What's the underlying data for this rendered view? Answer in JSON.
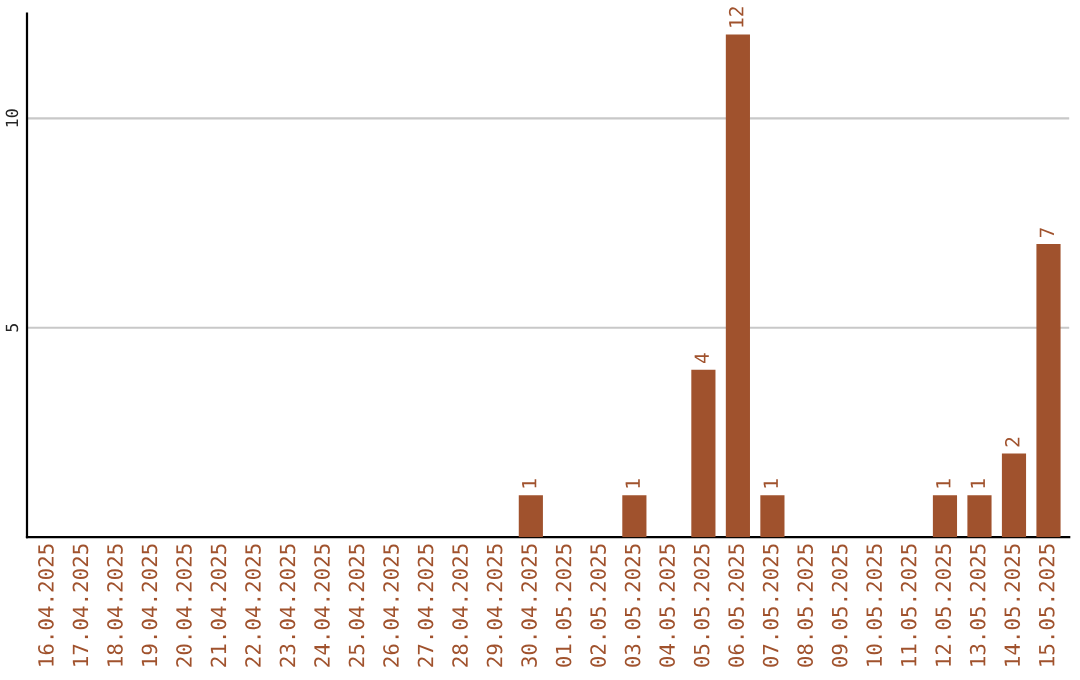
{
  "chart_data": {
    "type": "bar",
    "categories": [
      "16.04.2025",
      "17.04.2025",
      "18.04.2025",
      "19.04.2025",
      "20.04.2025",
      "21.04.2025",
      "22.04.2025",
      "23.04.2025",
      "24.04.2025",
      "25.04.2025",
      "26.04.2025",
      "27.04.2025",
      "28.04.2025",
      "29.04.2025",
      "30.04.2025",
      "01.05.2025",
      "02.05.2025",
      "03.05.2025",
      "04.05.2025",
      "05.05.2025",
      "06.05.2025",
      "07.05.2025",
      "08.05.2025",
      "09.05.2025",
      "10.05.2025",
      "11.05.2025",
      "12.05.2025",
      "13.05.2025",
      "14.05.2025",
      "15.05.2025"
    ],
    "values": [
      0,
      0,
      0,
      0,
      0,
      0,
      0,
      0,
      0,
      0,
      0,
      0,
      0,
      0,
      1,
      0,
      0,
      1,
      0,
      4,
      12,
      1,
      0,
      0,
      0,
      0,
      1,
      1,
      2,
      7
    ],
    "value_labels": [
      null,
      null,
      null,
      null,
      null,
      null,
      null,
      null,
      null,
      null,
      null,
      null,
      null,
      null,
      "1",
      null,
      null,
      "1",
      null,
      "4",
      "12",
      "1",
      null,
      null,
      null,
      null,
      "1",
      "1",
      "2",
      "7"
    ],
    "color": "#a0522d",
    "ylim": [
      0,
      12.5
    ],
    "yticks": [
      5,
      10
    ],
    "grid": "y"
  }
}
